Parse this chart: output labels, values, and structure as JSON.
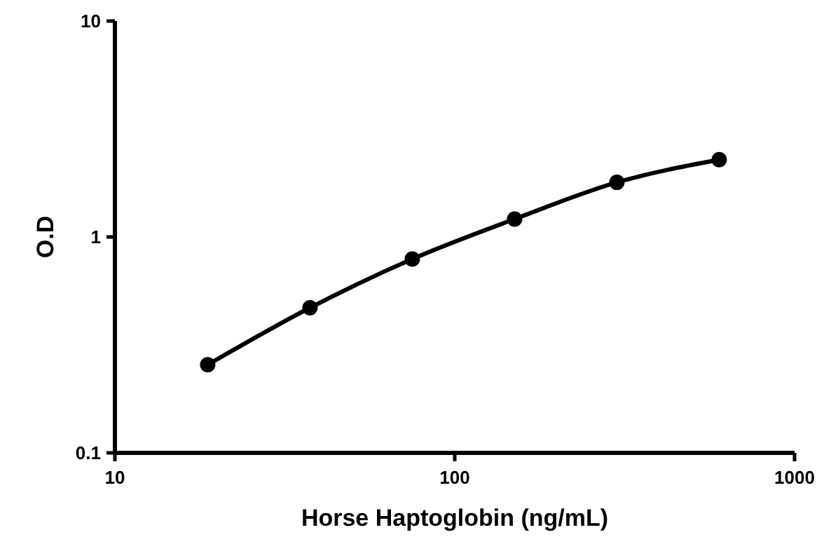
{
  "chart_data": {
    "type": "line",
    "xlabel": "Horse Haptoglobin (ng/mL)",
    "ylabel": "O.D",
    "log": "xy",
    "x": [
      18.75,
      37.5,
      75,
      150,
      300,
      600
    ],
    "series": [
      {
        "color": "#000000",
        "values": [
          0.256,
          0.47,
          0.79,
          1.21,
          1.79,
          2.28
        ]
      }
    ],
    "xlim": [
      10,
      1000
    ],
    "xticks": [
      10,
      100,
      1000
    ],
    "ylim": [
      0.1,
      10
    ],
    "yticks": [
      0.1,
      1,
      10
    ],
    "grid": false,
    "marker": "circle",
    "line_style": "solid"
  }
}
